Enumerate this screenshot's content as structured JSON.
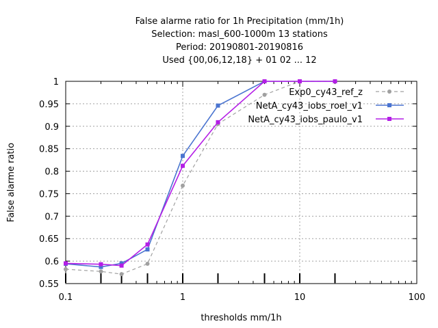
{
  "chart_data": {
    "type": "line",
    "title_lines": [
      "False alarme ratio  for 1h Precipitation (mm/1h)",
      "Selection: masl_600-1000m     13 stations",
      "Period: 20190801-20190816",
      "Used {00,06,12,18} + 01 02 ... 12"
    ],
    "xlabel": "thresholds mm/1h",
    "ylabel": "False alarme ratio",
    "x_scale": "log",
    "xlim": [
      0.1,
      100
    ],
    "ylim": [
      0.55,
      1.0
    ],
    "x_ticks": [
      {
        "value": 0.1,
        "label": "0.1"
      },
      {
        "value": 1,
        "label": "1"
      },
      {
        "value": 10,
        "label": "10"
      },
      {
        "value": 100,
        "label": "100"
      }
    ],
    "y_ticks": [
      {
        "value": 0.55,
        "label": "0.55"
      },
      {
        "value": 0.6,
        "label": "0.6"
      },
      {
        "value": 0.65,
        "label": "0.65"
      },
      {
        "value": 0.7,
        "label": "0.7"
      },
      {
        "value": 0.75,
        "label": "0.75"
      },
      {
        "value": 0.8,
        "label": "0.8"
      },
      {
        "value": 0.85,
        "label": "0.85"
      },
      {
        "value": 0.9,
        "label": "0.9"
      },
      {
        "value": 0.95,
        "label": "0.95"
      },
      {
        "value": 1.0,
        "label": "1"
      }
    ],
    "grid": true,
    "legend_position": "top-right",
    "sample_markers_x": [
      0.1,
      0.2,
      0.3,
      0.5,
      1,
      2,
      5,
      10,
      20
    ],
    "series": [
      {
        "name": "Exp0_cy43_ref_z",
        "color": "#a0a0a0",
        "dashed": true,
        "marker": "circle",
        "x": [
          0.1,
          0.2,
          0.3,
          0.5,
          1,
          2,
          5,
          10,
          20
        ],
        "y": [
          0.582,
          0.577,
          0.571,
          0.594,
          0.768,
          0.905,
          0.97,
          1.0,
          1.0
        ]
      },
      {
        "name": "NetA_cy43_iobs_roel_v1",
        "color": "#4a74d0",
        "dashed": false,
        "marker": "square",
        "x": [
          0.1,
          0.2,
          0.3,
          0.5,
          1,
          2,
          5,
          10,
          20
        ],
        "y": [
          0.594,
          0.587,
          0.595,
          0.626,
          0.834,
          0.946,
          1.0,
          1.0,
          1.0
        ]
      },
      {
        "name": "NetA_cy43_iobs_paulo_v1",
        "color": "#b41ee6",
        "dashed": false,
        "marker": "square",
        "x": [
          0.1,
          0.2,
          0.3,
          0.5,
          1,
          2,
          5,
          10,
          20
        ],
        "y": [
          0.595,
          0.593,
          0.59,
          0.637,
          0.812,
          0.909,
          1.0,
          1.0,
          1.0
        ]
      }
    ]
  }
}
